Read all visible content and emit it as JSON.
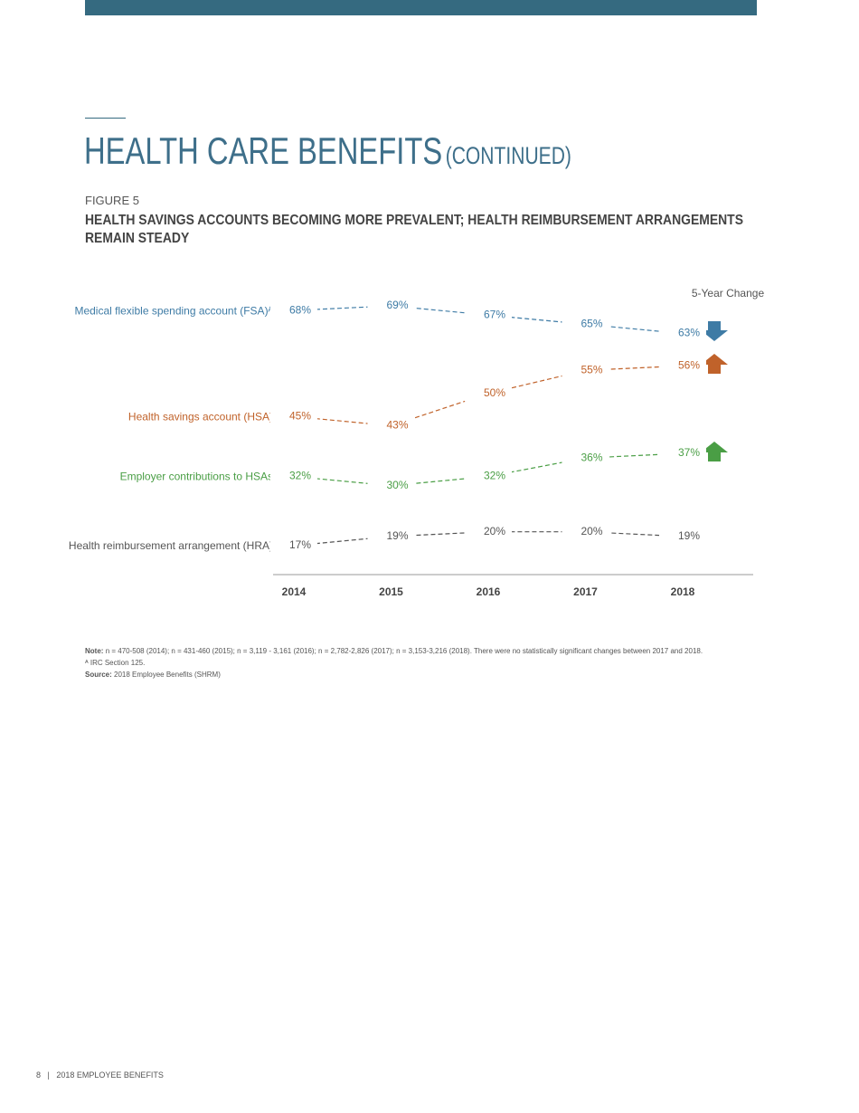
{
  "header": {
    "title": "HEALTH CARE BENEFITS",
    "title_suffix": "(CONTINUED)"
  },
  "figure": {
    "label": "FIGURE 5",
    "subtitle_lines": [
      "HEALTH SAVINGS ACCOUNTS BECOMING MORE PREVALENT; HEALTH REIMBURSEMENT ARRANGEMENTS",
      "REMAIN STEADY"
    ]
  },
  "chart_data": {
    "type": "line",
    "change_label": "5-Year Change",
    "categories": [
      "2014",
      "2015",
      "2016",
      "2017",
      "2018"
    ],
    "series": [
      {
        "name": "Medical flexible spending account (FSA)ᴬ",
        "color": "#3e7ba5",
        "values": [
          68,
          69,
          67,
          65,
          63
        ],
        "value_labels": [
          "68%",
          "69%",
          "67%",
          "65%",
          "63%"
        ]
      },
      {
        "name": "Health savings account (HSA)",
        "color": "#c0622a",
        "values": [
          45,
          43,
          50,
          55,
          56
        ],
        "value_labels": [
          "45%",
          "43%",
          "50%",
          "55%",
          "56%"
        ]
      },
      {
        "name": "Employer contributions to HSAs",
        "color": "#4a9e45",
        "values": [
          32,
          30,
          32,
          36,
          37
        ],
        "value_labels": [
          "32%",
          "30%",
          "32%",
          "36%",
          "37%"
        ]
      },
      {
        "name": "Health reimbursement arrangement (HRA)",
        "color": "#555555",
        "values": [
          17,
          19,
          20,
          20,
          19
        ],
        "value_labels": [
          "17%",
          "19%",
          "20%",
          "20%",
          "19%"
        ]
      }
    ]
  },
  "notes": {
    "note_label": "Note:",
    "note_text": "n = 470-508 (2014); n = 431-460 (2015); n = 3,119 - 3,161 (2016); n = 2,782-2,826 (2017); n = 3,153-3,216 (2018). There were no statistically significant changes between 2017 and 2018.",
    "footnote": "ᴬ IRC Section 125.",
    "source_label": "Source:",
    "source_text": "2018 Employee Benefits (SHRM)"
  },
  "footer": {
    "page": "8",
    "separator": "|",
    "publication": "2018 EMPLOYEE BENEFITS"
  }
}
